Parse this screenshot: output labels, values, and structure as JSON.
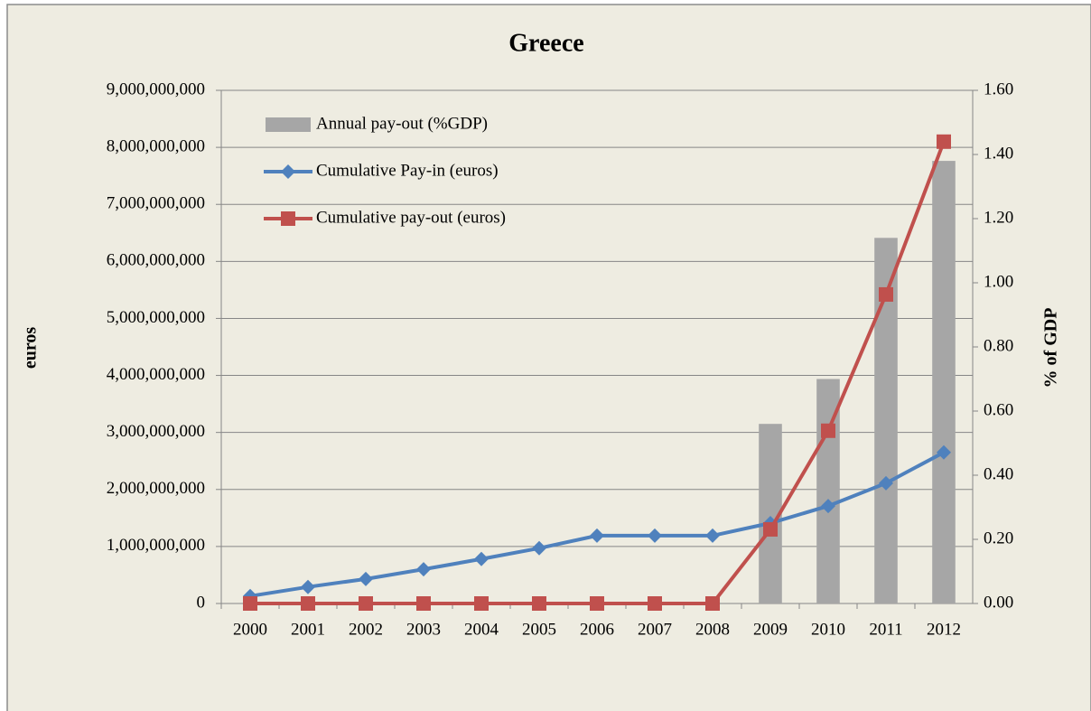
{
  "chart_data": {
    "type": "combo",
    "title": "Greece",
    "y_label": "euros",
    "y2_label": "% of GDP",
    "categories": [
      "2000",
      "2001",
      "2002",
      "2003",
      "2004",
      "2005",
      "2006",
      "2007",
      "2008",
      "2009",
      "2010",
      "2011",
      "2012"
    ],
    "ylim": [
      0,
      9000000000
    ],
    "yticks": [
      0,
      {
        "value": 1000000000,
        "label": "1,000,000,000"
      },
      {
        "value": 2000000000,
        "label": "2,000,000,000"
      },
      {
        "value": 3000000000,
        "label": "3,000,000,000"
      },
      {
        "value": 4000000000,
        "label": "4,000,000,000"
      },
      {
        "value": 5000000000,
        "label": "5,000,000,000"
      },
      {
        "value": 6000000000,
        "label": "6,000,000,000"
      },
      {
        "value": 7000000000,
        "label": "7,000,000,000"
      },
      {
        "value": 8000000000,
        "label": "8,000,000,000"
      },
      {
        "value": 9000000000,
        "label": "9,000,000,000"
      }
    ],
    "y2lim": [
      0,
      1.6
    ],
    "y2ticks": [
      {
        "value": 0,
        "label": "0.00"
      },
      {
        "value": 0.2,
        "label": "0.20"
      },
      {
        "value": 0.4,
        "label": "0.40"
      },
      {
        "value": 0.6,
        "label": "0.60"
      },
      {
        "value": 0.8,
        "label": "0.80"
      },
      {
        "value": 1.0,
        "label": "1.00"
      },
      {
        "value": 1.2,
        "label": "1.20"
      },
      {
        "value": 1.4,
        "label": "1.40"
      },
      {
        "value": 1.6,
        "label": "1.60"
      }
    ],
    "grid": true,
    "legend": "top-left",
    "series": [
      {
        "name": "Annual pay-out (%GDP)",
        "type": "bar",
        "axis": "y2",
        "color": "#a6a6a6",
        "values": [
          0,
          0,
          0,
          0,
          0,
          0,
          0,
          0,
          0,
          0.56,
          0.7,
          1.14,
          1.38
        ]
      },
      {
        "name": "Cumulative Pay-in (euros)",
        "type": "line",
        "marker": "diamond",
        "color": "#4f81bd",
        "values": [
          130000000,
          290000000,
          430000000,
          600000000,
          780000000,
          970000000,
          1190000000,
          1190000000,
          1190000000,
          1410000000,
          1710000000,
          2110000000,
          2650000000
        ]
      },
      {
        "name": "Cumulative pay-out (euros)",
        "type": "line",
        "marker": "square",
        "color": "#c0504d",
        "values": [
          0,
          0,
          0,
          0,
          0,
          0,
          0,
          0,
          0,
          1300000000,
          3030000000,
          5420000000,
          8100000000
        ]
      }
    ]
  }
}
